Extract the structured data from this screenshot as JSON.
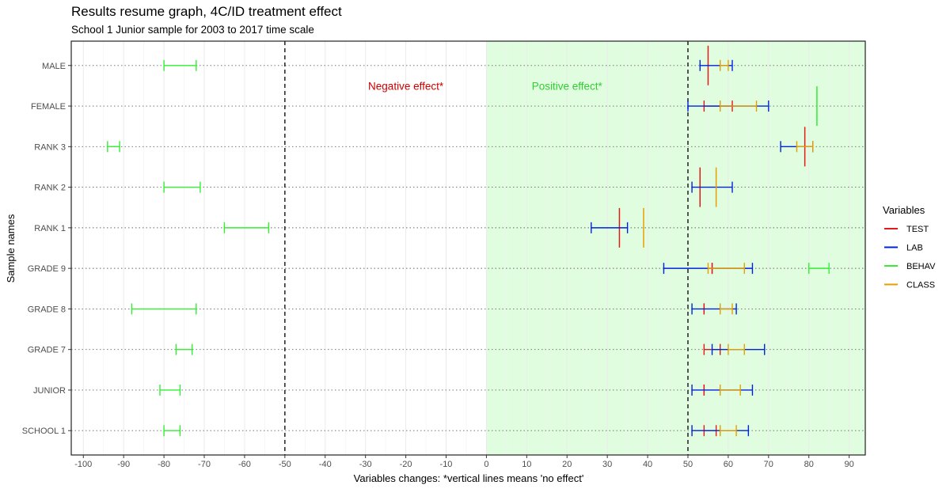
{
  "chart_data": {
    "type": "errorbar",
    "title": "Results resume graph, 4C/ID treatment effect",
    "subtitle": "School 1 Junior sample for 2003 to 2017 time scale",
    "xlabel": "Variables changes: *vertical lines means 'no effect'",
    "ylabel": "Sample names",
    "xlim": [
      -103,
      94
    ],
    "x_ticks": [
      -100,
      -90,
      -80,
      -70,
      -60,
      -50,
      -40,
      -30,
      -20,
      -10,
      0,
      10,
      20,
      30,
      40,
      50,
      60,
      70,
      80,
      90
    ],
    "categories": [
      "SCHOOL 1",
      "JUNIOR",
      "GRADE 7",
      "GRADE 8",
      "GRADE 9",
      "RANK 1",
      "RANK 2",
      "RANK 3",
      "FEMALE",
      "MALE"
    ],
    "reference_lines": [
      -50,
      50
    ],
    "shaded_region": {
      "from": 0,
      "to": 94,
      "color": "#e0fde0"
    },
    "annotations": [
      {
        "text": "Negative effect*",
        "x": -20,
        "category": "FEMALE",
        "offset": 0.5,
        "color": "#cc0000"
      },
      {
        "text": "Positive effect*",
        "x": 20,
        "category": "FEMALE",
        "offset": 0.5,
        "color": "#33cc33"
      }
    ],
    "legend": {
      "title": "Variables",
      "position": "right"
    },
    "series": [
      {
        "name": "TEST",
        "color": "#e31a1c",
        "intervals": [
          {
            "category": "SCHOOL 1",
            "low": 54,
            "high": 57
          },
          {
            "category": "JUNIOR",
            "low": 54,
            "high": 54
          },
          {
            "category": "GRADE 7",
            "low": 54,
            "high": 58
          },
          {
            "category": "GRADE 8",
            "low": 54,
            "high": 54
          },
          {
            "category": "GRADE 9",
            "low": 56,
            "high": 56
          },
          {
            "category": "RANK 1",
            "low": 33,
            "high": 33,
            "tall": true
          },
          {
            "category": "RANK 2",
            "low": 53,
            "high": 53,
            "tall": true
          },
          {
            "category": "RANK 3",
            "low": 79,
            "high": 79,
            "tall": true
          },
          {
            "category": "FEMALE",
            "low": 54,
            "high": 61
          },
          {
            "category": "MALE",
            "low": 55,
            "high": 55,
            "tall": true
          }
        ]
      },
      {
        "name": "LAB",
        "color": "#0022dd",
        "intervals": [
          {
            "category": "SCHOOL 1",
            "low": 51,
            "high": 65
          },
          {
            "category": "JUNIOR",
            "low": 51,
            "high": 66
          },
          {
            "category": "GRADE 7",
            "low": 56,
            "high": 69
          },
          {
            "category": "GRADE 8",
            "low": 51,
            "high": 62
          },
          {
            "category": "GRADE 9",
            "low": 44,
            "high": 66
          },
          {
            "category": "RANK 1",
            "low": 26,
            "high": 35
          },
          {
            "category": "RANK 2",
            "low": 51,
            "high": 61
          },
          {
            "category": "RANK 3",
            "low": 73,
            "high": 81
          },
          {
            "category": "FEMALE",
            "low": 50,
            "high": 70
          },
          {
            "category": "MALE",
            "low": 53,
            "high": 61
          }
        ]
      },
      {
        "name": "BEHAV",
        "color": "#33ee33",
        "intervals": [
          {
            "category": "SCHOOL 1",
            "low": -80,
            "high": -76
          },
          {
            "category": "JUNIOR",
            "low": -81,
            "high": -76
          },
          {
            "category": "GRADE 7",
            "low": -77,
            "high": -73
          },
          {
            "category": "GRADE 8",
            "low": -88,
            "high": -72
          },
          {
            "category": "GRADE 9",
            "low": 80,
            "high": 85
          },
          {
            "category": "RANK 1",
            "low": -65,
            "high": -54
          },
          {
            "category": "RANK 2",
            "low": -80,
            "high": -71
          },
          {
            "category": "RANK 3",
            "low": -94,
            "high": -91
          },
          {
            "category": "FEMALE",
            "low": 82,
            "high": 82,
            "tall": true
          },
          {
            "category": "MALE",
            "low": -80,
            "high": -72
          }
        ]
      },
      {
        "name": "CLASS",
        "color": "#e69f00",
        "intervals": [
          {
            "category": "SCHOOL 1",
            "low": 58,
            "high": 62
          },
          {
            "category": "JUNIOR",
            "low": 58,
            "high": 63
          },
          {
            "category": "GRADE 7",
            "low": 60,
            "high": 64
          },
          {
            "category": "GRADE 8",
            "low": 58,
            "high": 61
          },
          {
            "category": "GRADE 9",
            "low": 55,
            "high": 64
          },
          {
            "category": "RANK 1",
            "low": 39,
            "high": 39,
            "tall": true
          },
          {
            "category": "RANK 2",
            "low": 57,
            "high": 57,
            "tall": true
          },
          {
            "category": "RANK 3",
            "low": 77,
            "high": 81
          },
          {
            "category": "FEMALE",
            "low": 58,
            "high": 67
          },
          {
            "category": "MALE",
            "low": 58,
            "high": 60
          }
        ]
      }
    ]
  }
}
